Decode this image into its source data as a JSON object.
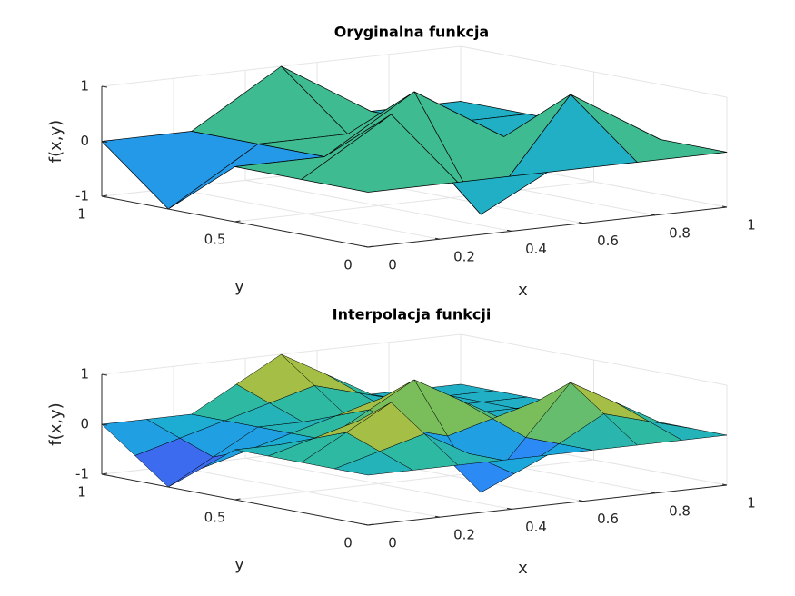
{
  "chart_data": [
    {
      "type": "surface",
      "title": "Oryginalna funkcja",
      "xlabel": "x",
      "ylabel": "y",
      "zlabel": "f(x,y)",
      "x": [
        0,
        0.25,
        0.5,
        0.75,
        1
      ],
      "y": [
        0,
        0.25,
        0.5,
        0.75,
        1
      ],
      "z": [
        [
          0,
          0,
          0,
          0,
          0
        ],
        [
          0,
          1,
          -1,
          1,
          0
        ],
        [
          0,
          0,
          1,
          0,
          0
        ],
        [
          -1,
          0,
          0,
          0,
          0
        ],
        [
          0,
          0,
          1,
          0,
          0
        ]
      ],
      "xlim": [
        0,
        1
      ],
      "ylim": [
        0,
        1
      ],
      "zlim": [
        -1,
        1
      ],
      "xticks": [
        0,
        0.2,
        0.4,
        0.6,
        0.8,
        1
      ],
      "yticks": [
        0,
        0.5,
        1
      ],
      "zticks": [
        -1,
        0,
        1
      ],
      "grid": true
    },
    {
      "type": "surface",
      "title": "Interpolacja funkcji",
      "xlabel": "x",
      "ylabel": "y",
      "zlabel": "f(x,y)",
      "x": [
        0,
        0.125,
        0.25,
        0.375,
        0.5,
        0.625,
        0.75,
        0.875,
        1
      ],
      "y": [
        0,
        0.125,
        0.25,
        0.375,
        0.5,
        0.625,
        0.75,
        0.875,
        1
      ],
      "z": [
        [
          0,
          0,
          0,
          0,
          0,
          0,
          0,
          0,
          0
        ],
        [
          0,
          0.25,
          0.5,
          0,
          -0.5,
          0,
          0.5,
          0.25,
          0
        ],
        [
          0,
          0.5,
          1,
          0,
          -1,
          0,
          1,
          0.5,
          0
        ],
        [
          0,
          0.25,
          0.5,
          0.25,
          0,
          0.25,
          0.5,
          0.25,
          0
        ],
        [
          0,
          0,
          0,
          0.5,
          1,
          0.5,
          0,
          0,
          0
        ],
        [
          -0.5,
          -0.25,
          0,
          0.25,
          0.5,
          0.25,
          0,
          0,
          0
        ],
        [
          -1,
          -0.5,
          0,
          0,
          0,
          0,
          0,
          0,
          0
        ],
        [
          -0.5,
          -0.25,
          0,
          0.25,
          0.5,
          0.25,
          0,
          0,
          0
        ],
        [
          0,
          0,
          0,
          0.5,
          1,
          0.5,
          0,
          0,
          0
        ]
      ],
      "xlim": [
        0,
        1
      ],
      "ylim": [
        0,
        1
      ],
      "zlim": [
        -1,
        1
      ],
      "xticks": [
        0,
        0.2,
        0.4,
        0.6,
        0.8,
        1
      ],
      "yticks": [
        0,
        0.5,
        1
      ],
      "zticks": [
        -1,
        0,
        1
      ],
      "grid": true
    }
  ]
}
